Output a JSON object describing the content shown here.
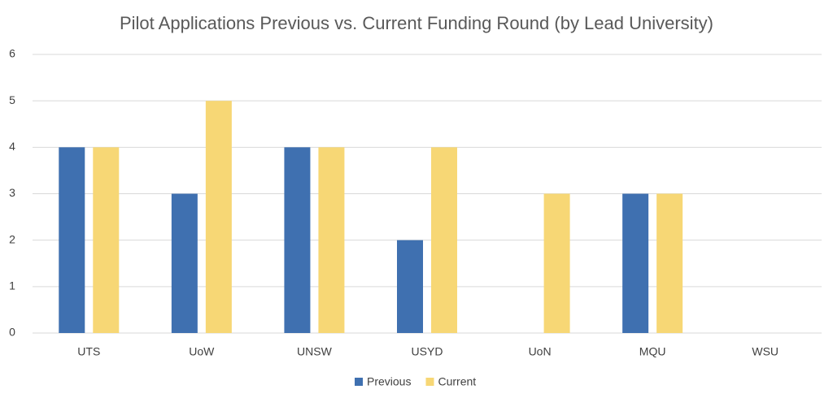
{
  "chart_data": {
    "type": "bar",
    "title": "Pilot Applications Previous vs. Current Funding Round (by Lead University)",
    "categories": [
      "UTS",
      "UoW",
      "UNSW",
      "USYD",
      "UoN",
      "MQU",
      "WSU"
    ],
    "series": [
      {
        "name": "Previous",
        "color": "#3f70b0",
        "values": [
          4,
          3,
          4,
          2,
          0,
          3,
          0
        ]
      },
      {
        "name": "Current",
        "color": "#f7d775",
        "values": [
          4,
          5,
          4,
          4,
          3,
          3,
          0
        ]
      }
    ],
    "ylim": [
      0,
      6
    ],
    "yticks": [
      0,
      1,
      2,
      3,
      4,
      5,
      6
    ],
    "grid": true,
    "legend": "bottom"
  }
}
